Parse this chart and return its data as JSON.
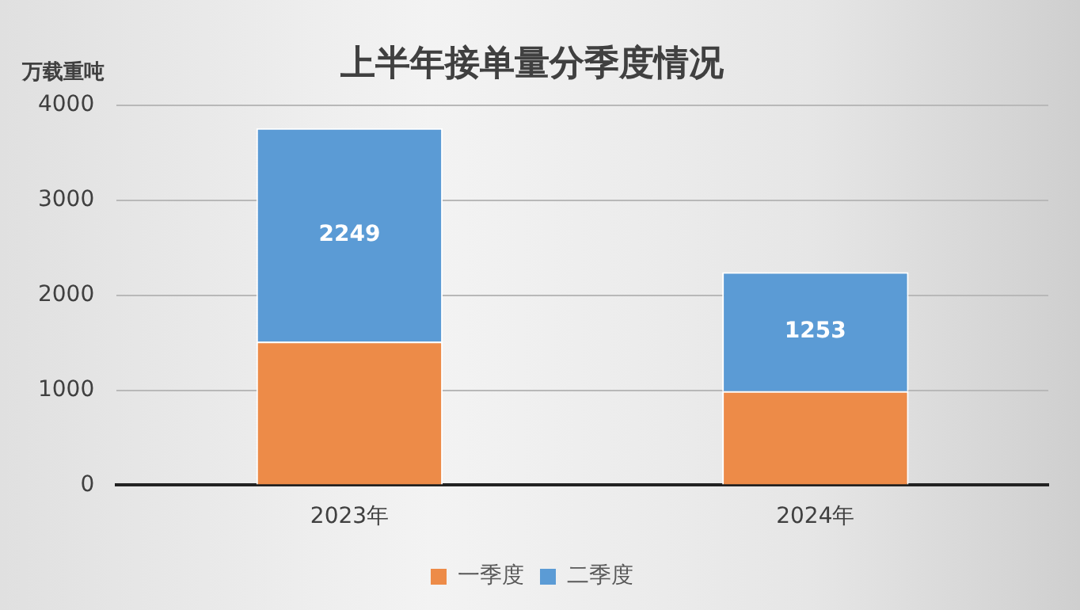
{
  "chart_data": {
    "type": "bar",
    "title": "上半年接单量分季度情况",
    "ylabel": "万载重吨",
    "categories": [
      "2023年",
      "2024年"
    ],
    "stacked": true,
    "series": [
      {
        "name": "一季度",
        "color": "#ed8b48",
        "values": [
          1510,
          990
        ]
      },
      {
        "name": "二季度",
        "color": "#5b9bd5",
        "values": [
          2249,
          1253
        ],
        "value_labels": [
          "2249",
          "1253"
        ]
      }
    ],
    "ylim": [
      0,
      4000
    ],
    "yticks": [
      0,
      1000,
      2000,
      3000,
      4000
    ],
    "grid": "y",
    "legend": "bottom"
  }
}
